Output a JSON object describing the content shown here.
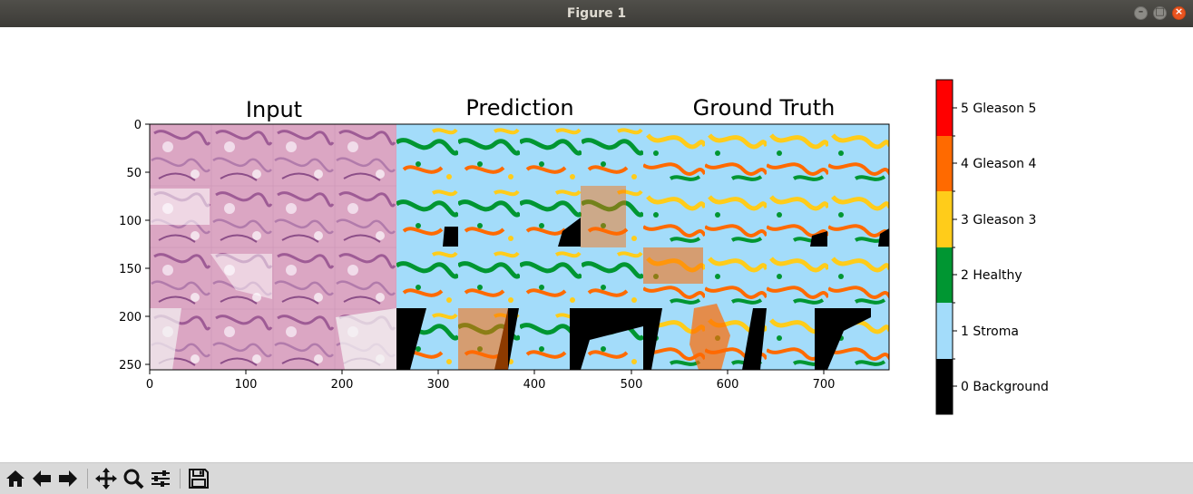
{
  "window": {
    "title": "Figure 1"
  },
  "panels": [
    {
      "title": "Input"
    },
    {
      "title": "Prediction"
    },
    {
      "title": "Ground Truth"
    }
  ],
  "axes": {
    "y_ticks": [
      "0",
      "50",
      "100",
      "150",
      "200",
      "250"
    ],
    "x_ticks": [
      "0",
      "100",
      "200",
      "300",
      "400",
      "500",
      "600",
      "700"
    ]
  },
  "colorbar": {
    "labels": [
      "0 Background",
      "1 Stroma",
      "2 Healthy",
      "3 Gleason 3",
      "4 Gleason 4",
      "5 Gleason 5"
    ],
    "colors": [
      "#000000",
      "#a3dcfa",
      "#009632",
      "#ffcc1a",
      "#ff6a00",
      "#ff0000"
    ]
  },
  "toolbar": {
    "icons": [
      "home-icon",
      "back-arrow-icon",
      "forward-arrow-icon",
      "pan-icon",
      "zoom-icon",
      "configure-subplots-icon",
      "save-icon"
    ]
  }
}
